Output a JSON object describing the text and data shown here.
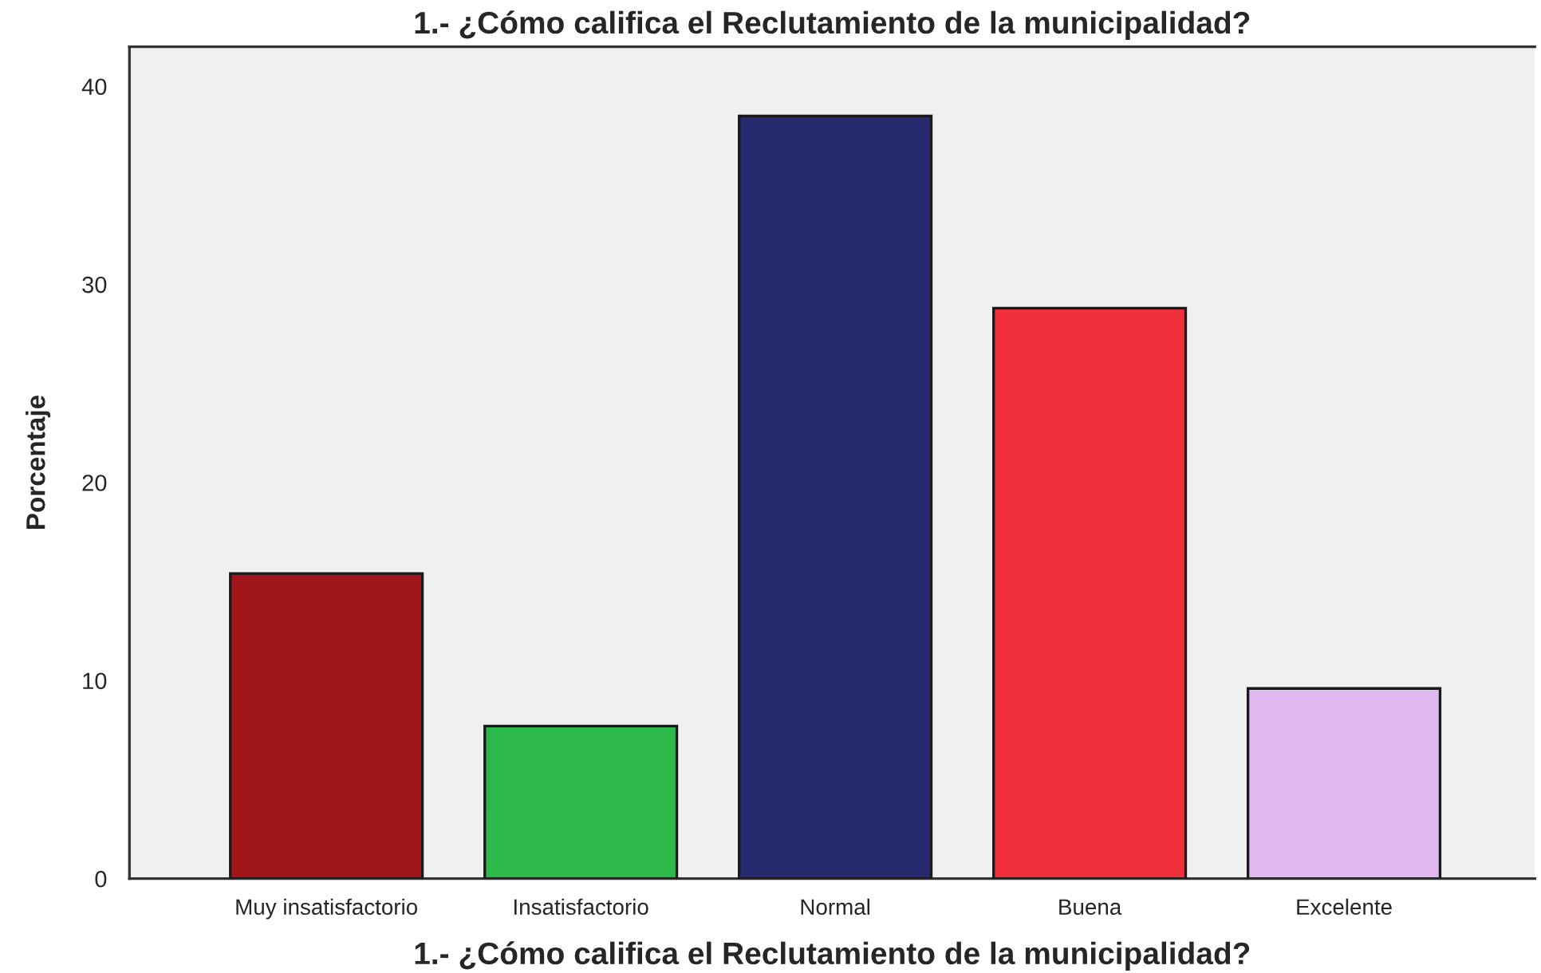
{
  "chart_data": {
    "type": "bar",
    "title": "1.- ¿Cómo califica el Reclutamiento de la municipalidad?",
    "xlabel": "1.- ¿Cómo califica el Reclutamiento de la municipalidad?",
    "ylabel": "Porcentaje",
    "categories": [
      "Muy insatisfactorio",
      "Insatisfactorio",
      "Normal",
      "Buena",
      "Excelente"
    ],
    "values": [
      15.4,
      7.7,
      38.5,
      28.8,
      9.6
    ],
    "colors": [
      "#a0161b",
      "#2db84a",
      "#282a70",
      "#ef2f3a",
      "#dfb8f0"
    ],
    "ylim": [
      0,
      42
    ],
    "yticks": [
      0,
      10,
      20,
      30,
      40
    ]
  }
}
